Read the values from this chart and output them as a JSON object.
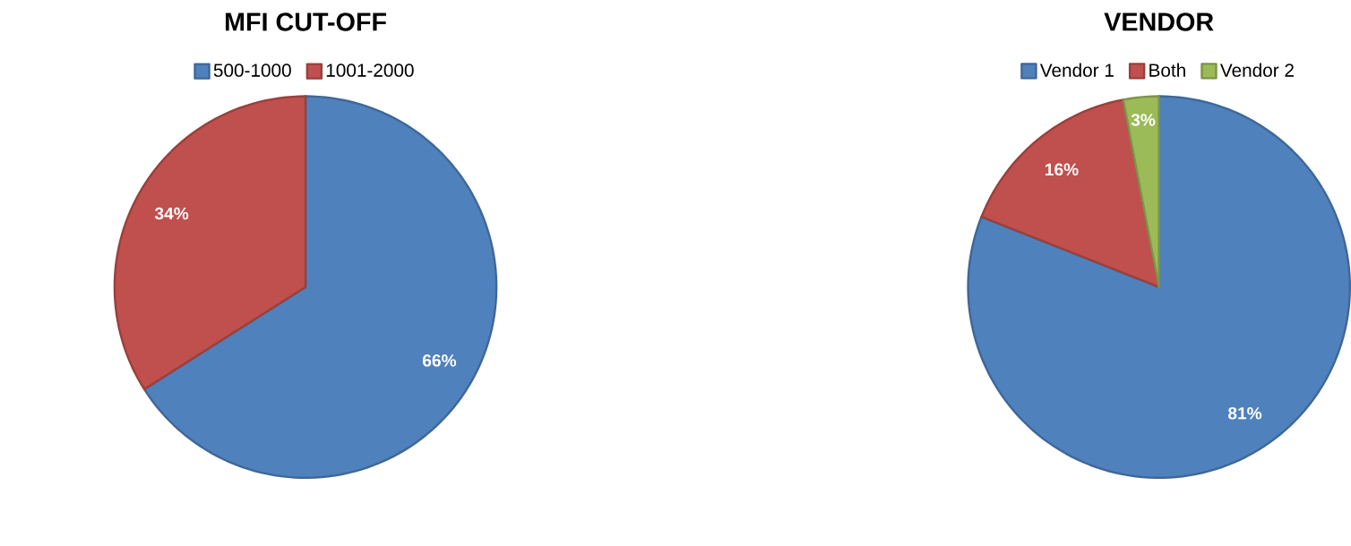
{
  "chart_data": [
    {
      "type": "pie",
      "title": "MFI CUT-OFF",
      "categories": [
        "500-1000",
        "1001-2000"
      ],
      "values": [
        66,
        34
      ],
      "colors": [
        "#4f81bd",
        "#c0504d"
      ],
      "value_labels": [
        "66%",
        "34%"
      ],
      "legend": "top"
    },
    {
      "type": "pie",
      "title": "VENDOR",
      "categories": [
        "Vendor 1",
        "Both",
        "Vendor 2"
      ],
      "values": [
        81,
        16,
        3
      ],
      "colors": [
        "#4f81bd",
        "#c0504d",
        "#9bbb59"
      ],
      "value_labels": [
        "81%",
        "16%",
        "3%"
      ],
      "legend": "top"
    }
  ]
}
